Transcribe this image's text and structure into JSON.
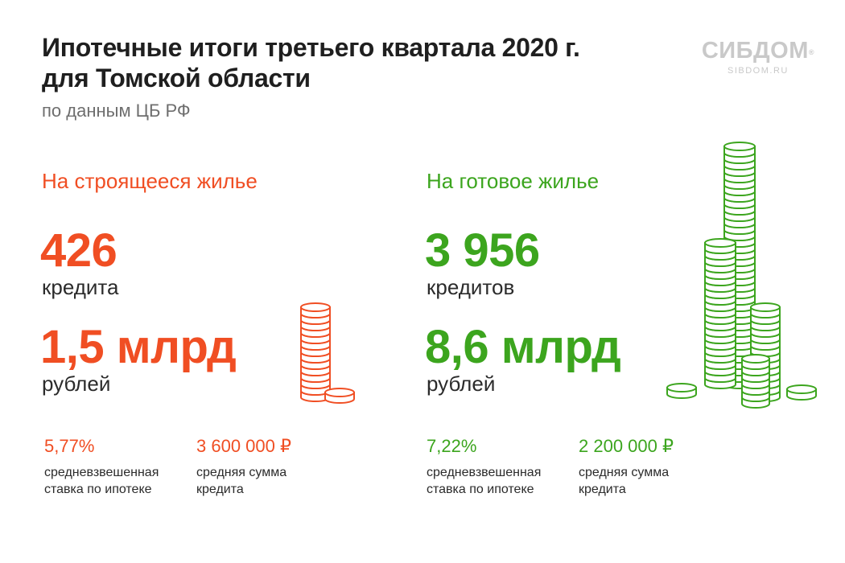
{
  "header": {
    "title_line1": "Ипотечные итоги третьего квартала 2020 г.",
    "title_line2": "для Томской области",
    "subtitle": "по данным ЦБ РФ"
  },
  "logo": {
    "name": "СИБДОМ",
    "registered": "®",
    "url": "SIBDOM.RU"
  },
  "colors": {
    "construction": "#f04e23",
    "ready": "#3ca51e",
    "logo": "#c9c9c9"
  },
  "construction": {
    "heading": "На строящееся жилье",
    "loans_count": "426",
    "loans_unit": "кредита",
    "amount": "1,5 млрд",
    "amount_unit": "рублей",
    "rate_value": "5,77%",
    "rate_label": "средневзвешенная\nставка по ипотеке",
    "avg_sum_value": "3 600 000 ₽",
    "avg_sum_label": "средняя сумма\nкредита",
    "icon": "coin-stack-icon"
  },
  "ready": {
    "heading": "На готовое жилье",
    "loans_count": "3 956",
    "loans_unit": "кредитов",
    "amount": "8,6 млрд",
    "amount_unit": "рублей",
    "rate_value": "7,22%",
    "rate_label": "средневзвешенная\nставка по ипотеке",
    "avg_sum_value": "2 200 000 ₽",
    "avg_sum_label": "средняя сумма\nкредита",
    "icon": "coin-stacks-icon"
  }
}
